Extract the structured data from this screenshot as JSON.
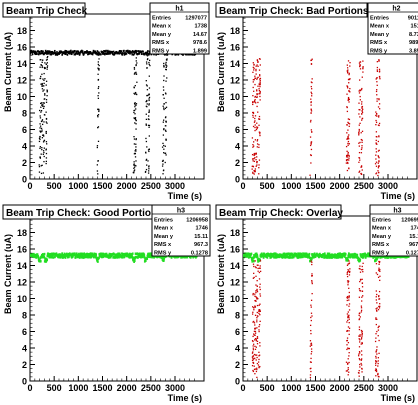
{
  "colors": {
    "background": "#ffffff",
    "frame": "#000000",
    "h1": "#000000",
    "bad": "#c80000",
    "good": "#22dd22"
  },
  "chart_data": [
    {
      "type": "scatter",
      "title": "Beam Trip Check",
      "xlabel": "Time (s)",
      "ylabel": "Beam Current (uA)",
      "xlim": [
        0,
        3600
      ],
      "ylim": [
        0,
        20
      ],
      "x_ticks": [
        0,
        500,
        1000,
        1500,
        2000,
        2500,
        3000
      ],
      "y_ticks": [
        0,
        2,
        4,
        6,
        8,
        10,
        12,
        14,
        16,
        18,
        20
      ],
      "stats": {
        "name": "h1",
        "rows": [
          [
            "Entries",
            "1297077"
          ],
          [
            "Mean x",
            "1738"
          ],
          [
            "Mean y",
            "14.67"
          ],
          [
            "RMS x",
            "978.6"
          ],
          [
            "RMS y",
            "1.899"
          ]
        ]
      },
      "baseline": 15.3,
      "series": [
        {
          "color": "black",
          "x_range": [
            0,
            3450
          ],
          "baseline": 15.3,
          "dip_times": [
            200,
            240,
            280,
            330,
            1400,
            2150,
            2180,
            2400,
            2450,
            2750,
            2800
          ]
        }
      ]
    },
    {
      "type": "scatter",
      "title": "Beam Trip Check: Bad Portions",
      "xlabel": "Time (s)",
      "ylabel": "Beam Current (uA)",
      "xlim": [
        0,
        3600
      ],
      "ylim": [
        0,
        20
      ],
      "x_ticks": [
        0,
        500,
        1000,
        1500,
        2000,
        2500,
        3000
      ],
      "y_ticks": [
        0,
        2,
        4,
        6,
        8,
        10,
        12,
        14,
        16,
        18,
        20
      ],
      "stats": {
        "name": "h2",
        "rows": [
          [
            "Entries",
            "90119"
          ],
          [
            "Mean x",
            "1513"
          ],
          [
            "Mean y",
            "8.731"
          ],
          [
            "RMS x",
            "989.4"
          ],
          [
            "RMS y",
            "3.851"
          ]
        ]
      },
      "series": [
        {
          "color": "red",
          "dip_times": [
            200,
            240,
            280,
            330,
            1400,
            2150,
            2180,
            2400,
            2450,
            2750,
            2800
          ]
        }
      ]
    },
    {
      "type": "scatter",
      "title": "Beam Trip Check: Good Portions",
      "xlabel": "Time (s)",
      "ylabel": "Beam Current (uA)",
      "xlim": [
        0,
        3600
      ],
      "ylim": [
        0,
        20
      ],
      "x_ticks": [
        0,
        500,
        1000,
        1500,
        2000,
        2500,
        3000
      ],
      "y_ticks": [
        0,
        2,
        4,
        6,
        8,
        10,
        12,
        14,
        16,
        18,
        20
      ],
      "stats": {
        "name": "h3",
        "rows": [
          [
            "Entries",
            "1206958"
          ],
          [
            "Mean x",
            "1746"
          ],
          [
            "Mean y",
            "15.11"
          ],
          [
            "RMS x",
            "967.3"
          ],
          [
            "RMS y",
            "0.1278"
          ]
        ]
      },
      "series": [
        {
          "color": "green",
          "x_range": [
            0,
            3450
          ],
          "baseline": 15.2,
          "gaps": [
            200,
            330,
            1400,
            2150,
            2400,
            2750
          ]
        }
      ]
    },
    {
      "type": "scatter",
      "title": "Beam Trip Check: Overlay",
      "xlabel": "Time (s)",
      "ylabel": "Beam Current (uA)",
      "xlim": [
        0,
        3600
      ],
      "ylim": [
        0,
        20
      ],
      "x_ticks": [
        0,
        500,
        1000,
        1500,
        2000,
        2500,
        3000
      ],
      "y_ticks": [
        0,
        2,
        4,
        6,
        8,
        10,
        12,
        14,
        16,
        18,
        20
      ],
      "stats": {
        "name": "h3",
        "rows": [
          [
            "Entries",
            "1206958"
          ],
          [
            "Mean x",
            "1746"
          ],
          [
            "Mean y",
            "15.11"
          ],
          [
            "RMS x",
            "967.3"
          ],
          [
            "RMS y",
            "0.1278"
          ]
        ]
      },
      "series": [
        {
          "color": "green",
          "x_range": [
            0,
            3450
          ],
          "baseline": 15.2,
          "gaps": [
            200,
            330,
            1400,
            2150,
            2400,
            2750
          ]
        },
        {
          "color": "red",
          "dip_times": [
            200,
            240,
            280,
            330,
            1400,
            2150,
            2180,
            2400,
            2450,
            2750,
            2800
          ]
        }
      ]
    }
  ]
}
